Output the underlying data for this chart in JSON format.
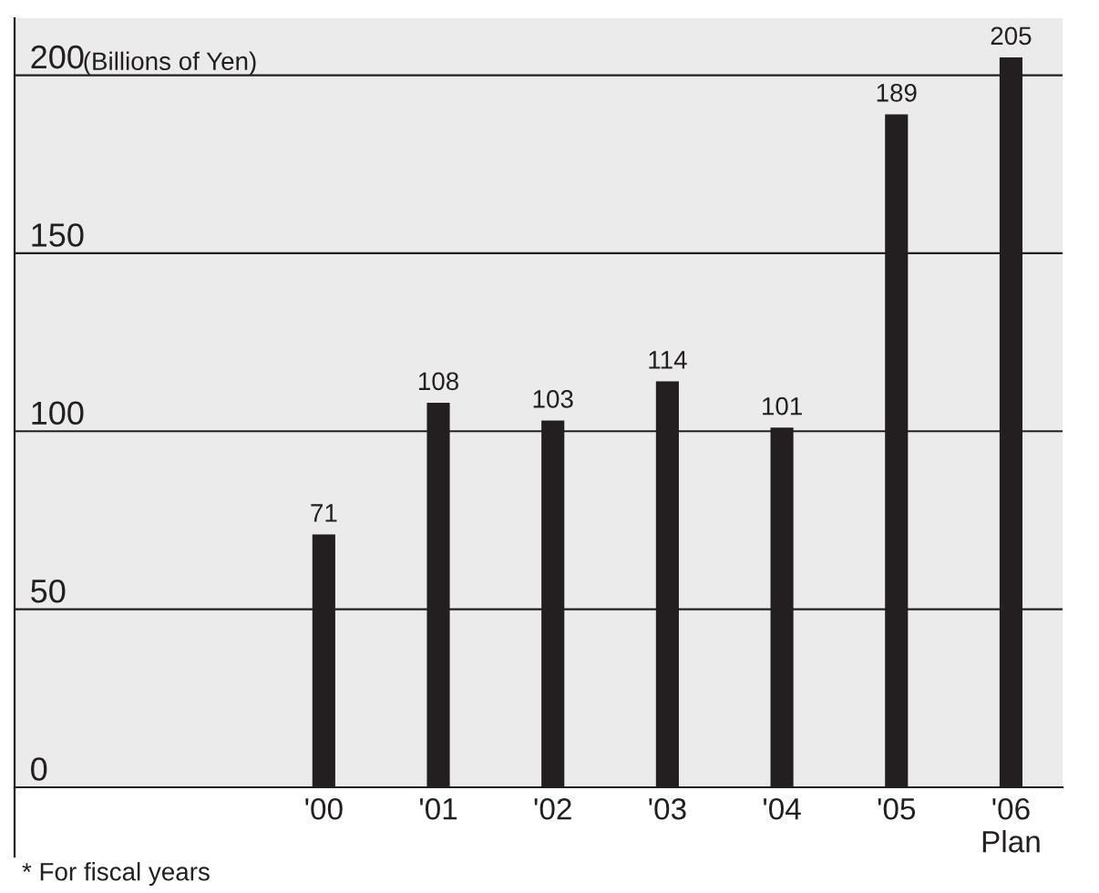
{
  "chart_data": {
    "type": "bar",
    "ylabel": "(Billions of Yen)",
    "categories": [
      "'00",
      "'01",
      "'02",
      "'03",
      "'04",
      "'05",
      "'06\nPlan"
    ],
    "values": [
      71,
      108,
      103,
      114,
      101,
      189,
      205
    ],
    "color": "#231f20",
    "data_labels": true,
    "ylim": [
      0,
      216
    ],
    "yticks": [
      0,
      50,
      100,
      150,
      200
    ],
    "grid": "y",
    "annotations": [
      "* For fiscal years"
    ]
  }
}
